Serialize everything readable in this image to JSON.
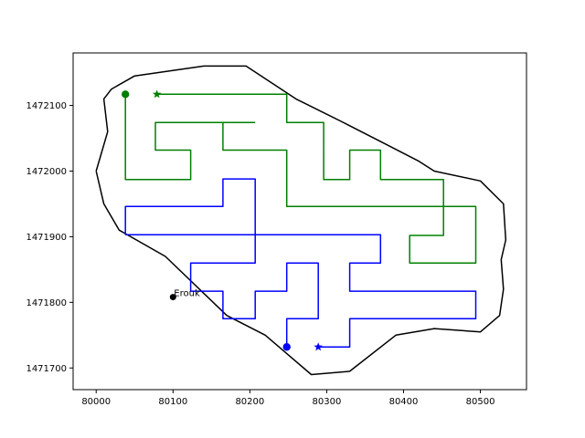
{
  "chart_data": {
    "type": "line",
    "title": "",
    "xlabel": "",
    "ylabel": "",
    "xlim": [
      79970,
      80560
    ],
    "ylim": [
      1471667,
      1472180
    ],
    "grid": false,
    "x_ticks": [
      80000,
      80100,
      80200,
      80300,
      80400,
      80500
    ],
    "y_ticks": [
      1471700,
      1471800,
      1471900,
      1472000,
      1472100
    ],
    "colors": {
      "boundary": "#000000",
      "green": "#008000",
      "blue": "#0000ff"
    },
    "series": [
      {
        "color": "#000000",
        "points": [
          [
            80000,
            1472000
          ],
          [
            80010,
            1471950
          ],
          [
            80030,
            1471910
          ],
          [
            80090,
            1471870
          ],
          [
            80170,
            1471780
          ],
          [
            80220,
            1471750
          ],
          [
            80250,
            1471720
          ],
          [
            80280,
            1471690
          ],
          [
            80330,
            1471695
          ],
          [
            80390,
            1471750
          ],
          [
            80440,
            1471760
          ],
          [
            80500,
            1471755
          ],
          [
            80525,
            1471780
          ],
          [
            80530,
            1471820
          ],
          [
            80527,
            1471865
          ],
          [
            80533,
            1471895
          ],
          [
            80530,
            1471950
          ],
          [
            80500,
            1471985
          ],
          [
            80440,
            1472000
          ],
          [
            80420,
            1472015
          ],
          [
            80370,
            1472045
          ],
          [
            80320,
            1472075
          ],
          [
            80260,
            1472110
          ],
          [
            80195,
            1472160
          ],
          [
            80140,
            1472160
          ],
          [
            80050,
            1472145
          ],
          [
            80020,
            1472125
          ],
          [
            80010,
            1472110
          ],
          [
            80015,
            1472060
          ],
          [
            80000,
            1472000
          ]
        ]
      },
      {
        "color": "#008000",
        "points": [
          [
            80038,
            1472117
          ],
          [
            80038,
            1471987
          ],
          [
            80123,
            1471987
          ],
          [
            80123,
            1472032
          ],
          [
            80077,
            1472032
          ],
          [
            80077,
            1472074
          ],
          [
            80207,
            1472074
          ]
        ]
      },
      {
        "color": "#008000",
        "points": [
          [
            80079,
            1472117
          ],
          [
            80248,
            1472117
          ],
          [
            80248,
            1472074
          ],
          [
            80296,
            1472074
          ],
          [
            80296,
            1471987
          ],
          [
            80330,
            1471987
          ],
          [
            80330,
            1472032
          ],
          [
            80370,
            1472032
          ],
          [
            80370,
            1471987
          ],
          [
            80452,
            1471987
          ],
          [
            80452,
            1471902
          ],
          [
            80408,
            1471902
          ],
          [
            80408,
            1471860
          ],
          [
            80494,
            1471860
          ],
          [
            80494,
            1471946
          ],
          [
            80248,
            1471946
          ],
          [
            80248,
            1472032
          ],
          [
            80165,
            1472032
          ],
          [
            80165,
            1472074
          ]
        ]
      },
      {
        "color": "#0000ff",
        "points": [
          [
            80038,
            1471903
          ],
          [
            80038,
            1471946
          ],
          [
            80165,
            1471946
          ],
          [
            80165,
            1471988
          ],
          [
            80207,
            1471988
          ],
          [
            80207,
            1471860
          ],
          [
            80123,
            1471860
          ],
          [
            80123,
            1471817
          ],
          [
            80165,
            1471817
          ],
          [
            80165,
            1471775
          ],
          [
            80207,
            1471775
          ],
          [
            80207,
            1471817
          ],
          [
            80248,
            1471817
          ],
          [
            80248,
            1471860
          ],
          [
            80289,
            1471860
          ],
          [
            80289,
            1471775
          ],
          [
            80248,
            1471775
          ],
          [
            80248,
            1471732
          ]
        ]
      },
      {
        "color": "#0000ff",
        "points": [
          [
            80038,
            1471903
          ],
          [
            80370,
            1471903
          ],
          [
            80370,
            1471860
          ],
          [
            80330,
            1471860
          ],
          [
            80330,
            1471817
          ],
          [
            80494,
            1471817
          ],
          [
            80494,
            1471775
          ],
          [
            80330,
            1471775
          ],
          [
            80330,
            1471732
          ],
          [
            80289,
            1471732
          ]
        ]
      }
    ],
    "markers": [
      {
        "x": 80038,
        "y": 1472117,
        "shape": "circle",
        "color": "#008000"
      },
      {
        "x": 80079,
        "y": 1472117,
        "shape": "star",
        "color": "#008000"
      },
      {
        "x": 80248,
        "y": 1471732,
        "shape": "circle",
        "color": "#0000ff"
      },
      {
        "x": 80289,
        "y": 1471732,
        "shape": "star",
        "color": "#0000ff"
      },
      {
        "x": 80100,
        "y": 1471808,
        "shape": "circle",
        "color": "#000000"
      }
    ],
    "annotations": [
      {
        "text": "Erouk",
        "x": 80100,
        "y": 1471808
      }
    ]
  }
}
